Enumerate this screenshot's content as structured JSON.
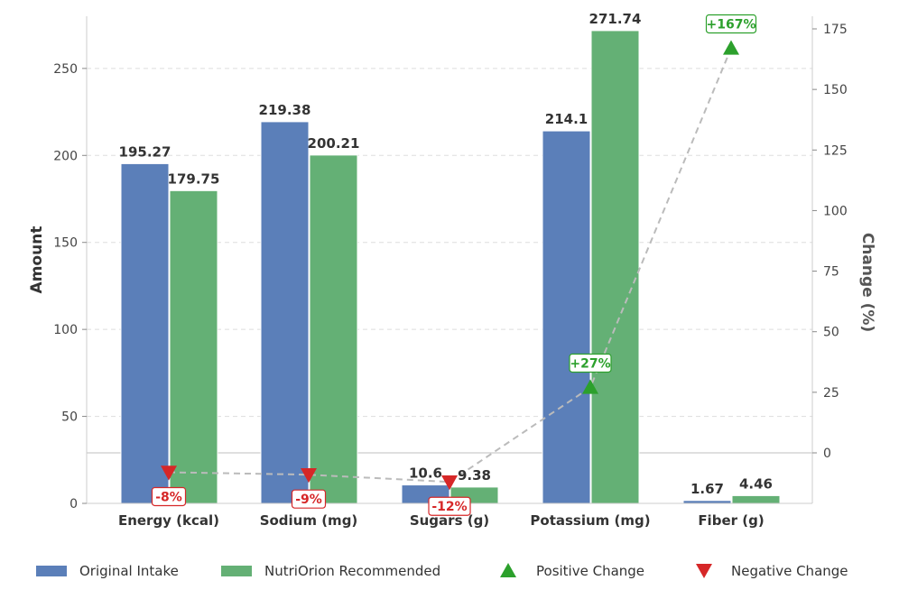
{
  "chart_data": {
    "type": "bar",
    "categories": [
      "Energy (kcal)",
      "Sodium (mg)",
      "Sugars (g)",
      "Potassium (mg)",
      "Fiber (g)"
    ],
    "series": [
      {
        "name": "Original Intake",
        "color": "#5b7fb9",
        "values": [
          195.27,
          219.38,
          10.6,
          214.1,
          1.67
        ]
      },
      {
        "name": "NutriOrion Recommended",
        "color": "#64b075",
        "values": [
          179.75,
          200.21,
          9.38,
          271.74,
          4.46
        ]
      }
    ],
    "value_labels": {
      "original": [
        "195.27",
        "219.38",
        "10.6",
        "214.1",
        "1.67"
      ],
      "recommended": [
        "179.75",
        "200.21",
        "9.38",
        "271.74",
        "4.46"
      ]
    },
    "change": {
      "values": [
        -8,
        -9,
        -12,
        27,
        167
      ],
      "labels": [
        "-8%",
        "-9%",
        "-12%",
        "+27%",
        "+167%"
      ],
      "positive_color": "#2ca02c",
      "negative_color": "#d62728",
      "line_color": "#bbbbbb"
    },
    "ylabel": "Amount",
    "ylabel_right": "Change (%)",
    "ylim": [
      0,
      280
    ],
    "y_ticks": [
      0,
      50,
      100,
      150,
      200,
      250
    ],
    "y2lim": [
      -20,
      175
    ],
    "y2_ticks": [
      0,
      25,
      50,
      75,
      100,
      125,
      150,
      175
    ],
    "grid": true,
    "legend": {
      "position": "bottom",
      "items": [
        "Original Intake",
        "NutriOrion Recommended",
        "Positive Change",
        "Negative Change"
      ]
    }
  }
}
